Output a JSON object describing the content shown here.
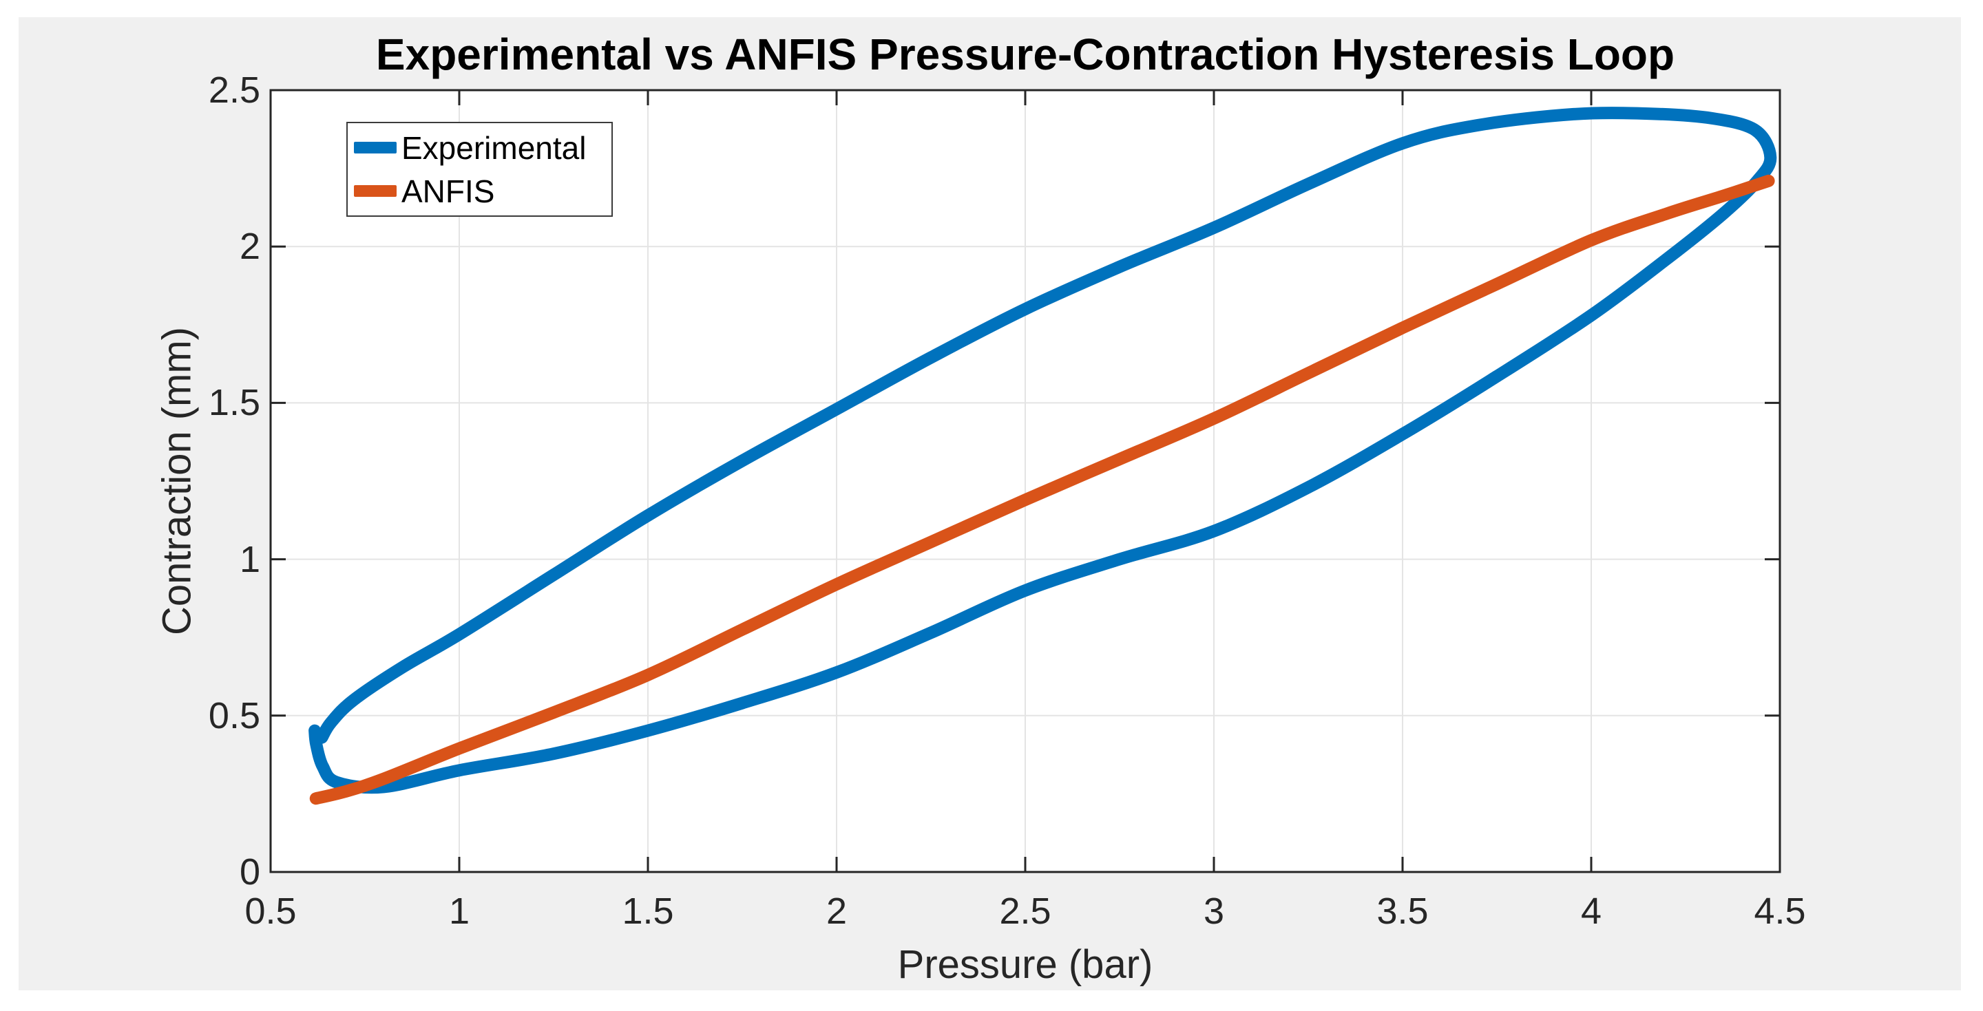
{
  "chart_data": {
    "type": "line",
    "title": "Experimental vs ANFIS Pressure-Contraction Hysteresis Loop",
    "xlabel": "Pressure (bar)",
    "ylabel": "Contraction (mm)",
    "xlim": [
      0.5,
      4.5
    ],
    "ylim": [
      0,
      2.5
    ],
    "xticks": [
      0.5,
      1,
      1.5,
      2,
      2.5,
      3,
      3.5,
      4,
      4.5
    ],
    "yticks": [
      0,
      0.5,
      1,
      1.5,
      2,
      2.5
    ],
    "xtick_labels": [
      "0.5",
      "1",
      "1.5",
      "2",
      "2.5",
      "3",
      "3.5",
      "4",
      "4.5"
    ],
    "ytick_labels": [
      "0",
      "0.5",
      "1",
      "1.5",
      "2",
      "2.5"
    ],
    "grid": true,
    "legend_position": "top-left",
    "series": [
      {
        "name": "Experimental",
        "color": "#0072BD",
        "line_width": 18,
        "shape": "hysteresis-loop",
        "points": [
          [
            0.617,
            0.452
          ],
          [
            0.621,
            0.408
          ],
          [
            0.638,
            0.338
          ],
          [
            0.675,
            0.287
          ],
          [
            0.8,
            0.272
          ],
          [
            1.0,
            0.325
          ],
          [
            1.25,
            0.378
          ],
          [
            1.5,
            0.452
          ],
          [
            1.75,
            0.54
          ],
          [
            2.0,
            0.638
          ],
          [
            2.25,
            0.765
          ],
          [
            2.5,
            0.9
          ],
          [
            2.75,
            1.0
          ],
          [
            3.0,
            1.09
          ],
          [
            3.25,
            1.23
          ],
          [
            3.5,
            1.4
          ],
          [
            3.75,
            1.585
          ],
          [
            4.0,
            1.78
          ],
          [
            4.2,
            1.96
          ],
          [
            4.35,
            2.105
          ],
          [
            4.44,
            2.21
          ],
          [
            4.475,
            2.285
          ],
          [
            4.435,
            2.372
          ],
          [
            4.32,
            2.41
          ],
          [
            4.15,
            2.425
          ],
          [
            3.95,
            2.423
          ],
          [
            3.7,
            2.388
          ],
          [
            3.5,
            2.33
          ],
          [
            3.25,
            2.2
          ],
          [
            3.0,
            2.06
          ],
          [
            2.75,
            1.935
          ],
          [
            2.5,
            1.8
          ],
          [
            2.25,
            1.645
          ],
          [
            2.0,
            1.48
          ],
          [
            1.75,
            1.315
          ],
          [
            1.5,
            1.14
          ],
          [
            1.25,
            0.95
          ],
          [
            1.0,
            0.76
          ],
          [
            0.85,
            0.655
          ],
          [
            0.72,
            0.55
          ],
          [
            0.66,
            0.478
          ],
          [
            0.636,
            0.43
          ]
        ]
      },
      {
        "name": "ANFIS",
        "color": "#D95319",
        "line_width": 18,
        "shape": "monotonic-curve",
        "points": [
          [
            0.62,
            0.235
          ],
          [
            0.7,
            0.258
          ],
          [
            0.8,
            0.298
          ],
          [
            1.0,
            0.395
          ],
          [
            1.25,
            0.51
          ],
          [
            1.5,
            0.63
          ],
          [
            1.75,
            0.775
          ],
          [
            2.0,
            0.92
          ],
          [
            2.25,
            1.055
          ],
          [
            2.5,
            1.19
          ],
          [
            2.75,
            1.32
          ],
          [
            3.0,
            1.45
          ],
          [
            3.25,
            1.595
          ],
          [
            3.5,
            1.74
          ],
          [
            3.75,
            1.88
          ],
          [
            4.0,
            2.02
          ],
          [
            4.2,
            2.105
          ],
          [
            4.35,
            2.162
          ],
          [
            4.47,
            2.21
          ]
        ]
      }
    ],
    "colors": {
      "figure_background": "#F0F0F0",
      "plot_background": "#FFFFFF",
      "grid_line": "#E4E4E4",
      "axis_frame": "#262626",
      "tick_text": "#262626"
    }
  }
}
